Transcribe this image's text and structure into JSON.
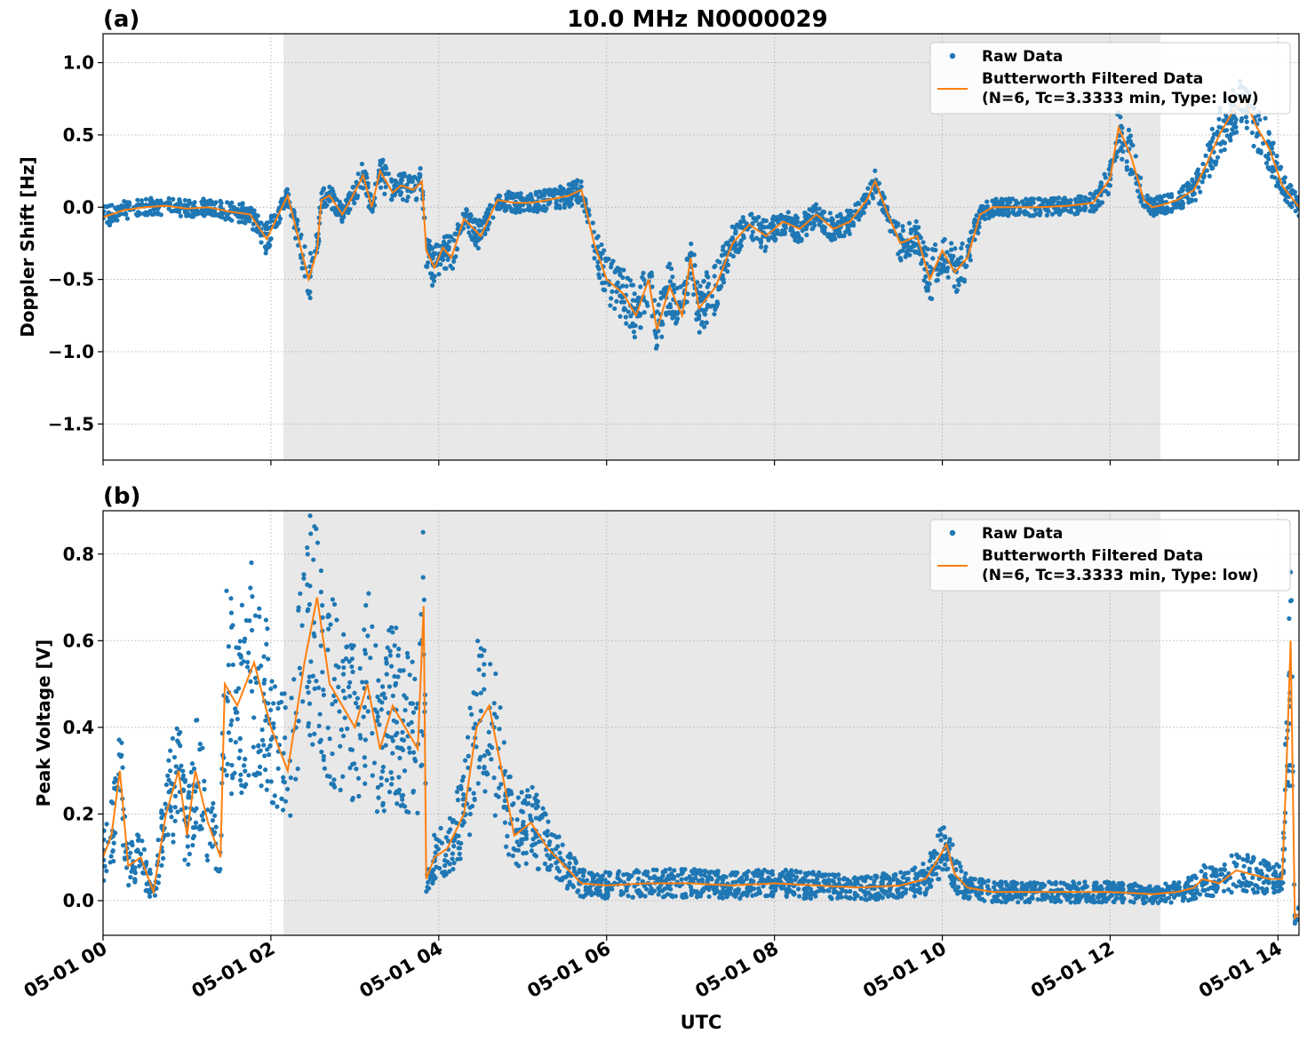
{
  "figure": {
    "title": "10.0 MHz N0000029",
    "xlabel": "UTC",
    "x_ticks": [
      "05-01 00",
      "05-01 02",
      "05-01 04",
      "05-01 06",
      "05-01 08",
      "05-01 10",
      "05-01 12",
      "05-01 14"
    ]
  },
  "colors": {
    "raw": "#1f77b4",
    "filtered": "#ff7f0e",
    "shade": "#e8e8e8",
    "grid": "#b0b0b0"
  },
  "chart_data": [
    {
      "type": "scatter",
      "panel_label": "(a)",
      "ylabel": "Doppler Shift [Hz]",
      "xlim_hours": [
        0,
        14.25
      ],
      "ylim": [
        -1.75,
        1.2
      ],
      "y_ticks": [
        1.0,
        0.5,
        0.0,
        -0.5,
        -1.0,
        -1.5
      ],
      "y_tick_labels": [
        "1.0",
        "0.5",
        "0.0",
        "−0.5",
        "−1.0",
        "−1.5"
      ],
      "grid": true,
      "legend_position": "top-right",
      "shaded_interval_hours": [
        2.15,
        12.6
      ],
      "series": [
        {
          "name": "Raw Data",
          "style": "points"
        },
        {
          "name": "Butterworth Filtered Data\n(N=6, Tc=3.3333 min, Type: low)",
          "style": "line"
        }
      ],
      "filtered_hours": [
        0.0,
        0.25,
        0.5,
        0.75,
        1.0,
        1.25,
        1.5,
        1.75,
        1.95,
        2.05,
        2.2,
        2.3,
        2.45,
        2.55,
        2.6,
        2.7,
        2.85,
        2.95,
        3.1,
        3.2,
        3.3,
        3.45,
        3.55,
        3.7,
        3.8,
        3.85,
        3.95,
        4.05,
        4.15,
        4.3,
        4.5,
        4.7,
        4.9,
        5.1,
        5.3,
        5.55,
        5.7,
        5.85,
        6.0,
        6.2,
        6.35,
        6.5,
        6.6,
        6.75,
        6.9,
        7.0,
        7.1,
        7.3,
        7.5,
        7.7,
        7.9,
        8.1,
        8.3,
        8.5,
        8.7,
        8.9,
        9.1,
        9.2,
        9.35,
        9.5,
        9.7,
        9.85,
        10.0,
        10.15,
        10.3,
        10.45,
        10.6,
        10.9,
        11.2,
        11.5,
        11.8,
        12.0,
        12.1,
        12.25,
        12.4,
        12.5,
        12.65,
        12.8,
        13.0,
        13.15,
        13.3,
        13.45,
        13.6,
        13.75,
        13.9,
        14.05,
        14.25
      ],
      "filtered_values": [
        -0.07,
        -0.02,
        0.0,
        0.01,
        -0.01,
        0.0,
        -0.03,
        -0.05,
        -0.22,
        -0.1,
        0.08,
        -0.15,
        -0.5,
        -0.3,
        0.05,
        0.08,
        -0.05,
        0.05,
        0.22,
        0.0,
        0.25,
        0.1,
        0.15,
        0.12,
        0.18,
        -0.3,
        -0.42,
        -0.28,
        -0.35,
        -0.08,
        -0.2,
        0.05,
        0.03,
        0.03,
        0.05,
        0.08,
        0.12,
        -0.25,
        -0.5,
        -0.6,
        -0.75,
        -0.5,
        -0.85,
        -0.55,
        -0.75,
        -0.35,
        -0.7,
        -0.55,
        -0.25,
        -0.12,
        -0.2,
        -0.1,
        -0.15,
        -0.05,
        -0.15,
        -0.1,
        0.05,
        0.18,
        -0.05,
        -0.25,
        -0.2,
        -0.5,
        -0.3,
        -0.45,
        -0.35,
        -0.05,
        0.0,
        0.0,
        0.0,
        0.01,
        0.03,
        0.2,
        0.55,
        0.35,
        0.05,
        0.0,
        0.02,
        0.05,
        0.12,
        0.3,
        0.5,
        0.65,
        0.75,
        0.55,
        0.4,
        0.15,
        0.0
      ]
    },
    {
      "type": "scatter",
      "panel_label": "(b)",
      "ylabel": "Peak Voltage [V]",
      "xlim_hours": [
        0,
        14.25
      ],
      "ylim": [
        -0.08,
        0.9
      ],
      "y_ticks": [
        0.0,
        0.2,
        0.4,
        0.6,
        0.8
      ],
      "y_tick_labels": [
        "0.0",
        "0.2",
        "0.4",
        "0.6",
        "0.8"
      ],
      "grid": true,
      "legend_position": "top-right",
      "shaded_interval_hours": [
        2.15,
        12.6
      ],
      "series": [
        {
          "name": "Raw Data",
          "style": "points"
        },
        {
          "name": "Butterworth Filtered Data\n(N=6, Tc=3.3333 min, Type: low)",
          "style": "line"
        }
      ],
      "filtered_hours": [
        0.0,
        0.1,
        0.2,
        0.3,
        0.45,
        0.6,
        0.75,
        0.9,
        1.0,
        1.1,
        1.25,
        1.4,
        1.45,
        1.6,
        1.8,
        2.0,
        2.2,
        2.4,
        2.55,
        2.7,
        2.85,
        3.0,
        3.15,
        3.3,
        3.45,
        3.6,
        3.75,
        3.82,
        3.85,
        3.95,
        4.1,
        4.3,
        4.45,
        4.6,
        4.75,
        4.9,
        5.1,
        5.3,
        5.5,
        5.7,
        6.0,
        6.5,
        7.0,
        7.5,
        8.0,
        8.5,
        9.0,
        9.5,
        9.8,
        9.9,
        10.05,
        10.15,
        10.3,
        10.6,
        11.0,
        11.5,
        12.0,
        12.5,
        12.8,
        13.0,
        13.1,
        13.3,
        13.5,
        13.7,
        13.9,
        14.05,
        14.1,
        14.15,
        14.2,
        14.25
      ],
      "filtered_values": [
        0.1,
        0.15,
        0.3,
        0.08,
        0.1,
        0.02,
        0.2,
        0.3,
        0.15,
        0.3,
        0.18,
        0.1,
        0.5,
        0.45,
        0.55,
        0.4,
        0.3,
        0.55,
        0.7,
        0.5,
        0.45,
        0.4,
        0.5,
        0.35,
        0.45,
        0.4,
        0.35,
        0.68,
        0.05,
        0.1,
        0.12,
        0.2,
        0.4,
        0.45,
        0.3,
        0.15,
        0.18,
        0.12,
        0.08,
        0.04,
        0.035,
        0.04,
        0.04,
        0.035,
        0.04,
        0.035,
        0.03,
        0.035,
        0.05,
        0.08,
        0.13,
        0.06,
        0.03,
        0.02,
        0.02,
        0.02,
        0.02,
        0.015,
        0.02,
        0.03,
        0.05,
        0.04,
        0.07,
        0.06,
        0.05,
        0.05,
        0.3,
        0.6,
        -0.04,
        -0.03
      ]
    }
  ]
}
